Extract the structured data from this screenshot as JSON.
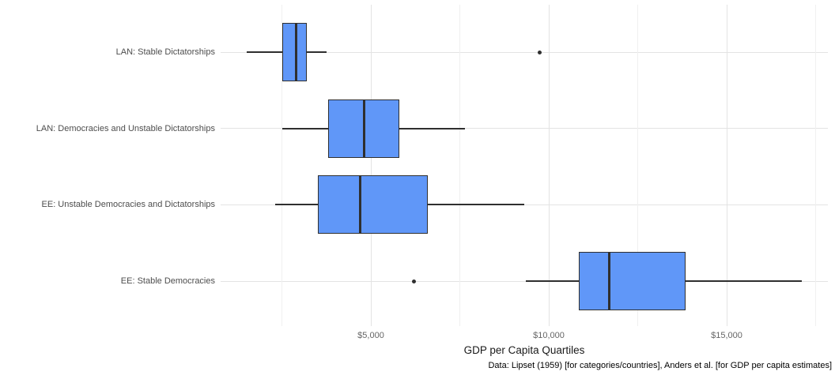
{
  "figure": {
    "caption": "Data: Lipset (1959) [for categories/countries], Anders et al. [for GDP per capita estimates]"
  },
  "chart_data": {
    "type": "boxplot",
    "orientation": "horizontal",
    "title": "",
    "xlabel": "GDP per Capita Quartiles",
    "ylabel": "",
    "grid": true,
    "legend": null,
    "x_axis": {
      "range": [
        800,
        17850
      ],
      "ticks": [
        {
          "value": 5000,
          "label": "$5,000"
        },
        {
          "value": 10000,
          "label": "$10,000"
        },
        {
          "value": 15000,
          "label": "$15,000"
        }
      ],
      "minor_gridline_values": [
        2500,
        7500,
        12500,
        17500
      ]
    },
    "categories": [
      "LAN: Stable Dictatorships",
      "LAN: Democracies and Unstable Dictatorships",
      "EE: Unstable Democracies and Dictatorships",
      "EE: Stable Democracies"
    ],
    "series": [
      {
        "label": "LAN: Stable Dictatorships",
        "whisker_low": 1500,
        "q1": 2500,
        "median": 2900,
        "q3": 3200,
        "whisker_high": 3750,
        "outliers": [
          9750
        ]
      },
      {
        "label": "LAN: Democracies and Unstable Dictatorships",
        "whisker_low": 2500,
        "q1": 3800,
        "median": 4800,
        "q3": 5800,
        "whisker_high": 7650,
        "outliers": []
      },
      {
        "label": "EE: Unstable Democracies and Dictatorships",
        "whisker_low": 2300,
        "q1": 3500,
        "median": 4700,
        "q3": 6600,
        "whisker_high": 9300,
        "outliers": []
      },
      {
        "label": "EE: Stable Democracies",
        "whisker_low": 9350,
        "q1": 10850,
        "median": 11700,
        "q3": 13850,
        "whisker_high": 17100,
        "outliers": [
          6200
        ]
      }
    ],
    "colors": {
      "box_fill": "#6097F8",
      "box_stroke": "#2F2F2F",
      "gridline_major": "#E3E3E3",
      "gridline_minor": "#F0F0F0",
      "axis_text": "#4D4D4D",
      "tick_text": "#666666",
      "title_text": "#1A1A1A",
      "caption_text": "#000000"
    }
  }
}
